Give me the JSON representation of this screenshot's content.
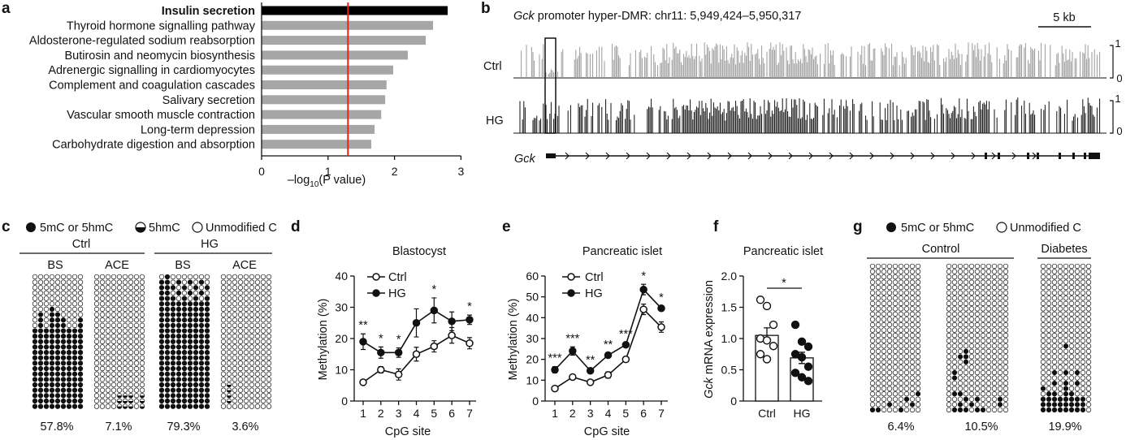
{
  "panel_labels": {
    "a": "a",
    "b": "b",
    "c": "c",
    "d": "d",
    "e": "e",
    "f": "f",
    "g": "g"
  },
  "chart_data": [
    {
      "id": "a",
      "type": "bar",
      "orientation": "horizontal",
      "categories": [
        "Insulin secretion",
        "Thyroid hormone signalling pathway",
        "Aldosterone-regulated sodium reabsorption",
        "Butirosin and neomycin biosynthesis",
        "Adrenergic signalling in cardiomyocytes",
        "Complement and coagulation cascades",
        "Salivary secretion",
        "Vascular smooth muscle contraction",
        "Long-term depression",
        "Carbohydrate digestion and absorption"
      ],
      "values": [
        2.8,
        2.58,
        2.47,
        2.2,
        1.98,
        1.88,
        1.86,
        1.8,
        1.7,
        1.65
      ],
      "highlight_index": 0,
      "xlabel_prefix": "–log",
      "xlabel_sub": "10",
      "xlabel_suffix": "(P value)",
      "xlim": [
        0,
        3
      ],
      "xticks": [
        "0",
        "1",
        "2",
        "3"
      ],
      "threshold": 1.3,
      "colors": {
        "bar": "#a6a6a6",
        "highlight": "#000000",
        "threshold": "#e3241b"
      }
    },
    {
      "id": "b",
      "type": "bar",
      "title_gene": "Gck",
      "title_rest": " promoter hyper-DMR: chr11: 5,949,424–5,950,317",
      "scale_label": "5 kb",
      "tracks": [
        {
          "name": "Ctrl",
          "color": "#9a9a9a",
          "ymax": "1",
          "ymin": "0"
        },
        {
          "name": "HG",
          "color": "#111111",
          "ymax": "1",
          "ymin": "0"
        }
      ],
      "gene_name": "Gck"
    },
    {
      "id": "c",
      "type": "table",
      "legend": [
        "5mC or 5hmC",
        "5hmC",
        "Unmodified C"
      ],
      "groups": [
        "Ctrl",
        "HG"
      ],
      "columns": [
        {
          "label": "BS",
          "percent": "57.8%"
        },
        {
          "label": "ACE",
          "percent": "7.1%"
        },
        {
          "label": "BS",
          "percent": "79.3%"
        },
        {
          "label": "ACE",
          "percent": "3.6%"
        }
      ]
    },
    {
      "id": "d",
      "type": "line",
      "title": "Blastocyst",
      "x": [
        1,
        2,
        3,
        4,
        5,
        6,
        7
      ],
      "xlabel": "CpG site",
      "ylabel": "Methylation (%)",
      "ylim": [
        0,
        40
      ],
      "yticks": [
        "0",
        "10",
        "20",
        "30",
        "40"
      ],
      "series": [
        {
          "name": "Ctrl",
          "values": [
            6,
            10,
            8.5,
            15,
            17.5,
            21,
            18.5
          ],
          "err": [
            0.8,
            1,
            1.8,
            2.2,
            1.8,
            2.5,
            1.8
          ],
          "filled": false
        },
        {
          "name": "HG",
          "values": [
            19,
            15.5,
            15.5,
            25,
            29,
            25.5,
            26
          ],
          "err": [
            2.5,
            1.8,
            1.5,
            4.5,
            4,
            3,
            1.5
          ],
          "filled": true
        }
      ],
      "stars": [
        "**",
        "*",
        "*",
        "",
        "*",
        "",
        "*"
      ]
    },
    {
      "id": "e",
      "type": "line",
      "title": "Pancreatic islet",
      "x": [
        1,
        2,
        3,
        4,
        5,
        6,
        7
      ],
      "xlabel": "CpG site",
      "ylabel": "Methylation (%)",
      "ylim": [
        0,
        60
      ],
      "yticks": [
        "0",
        "10",
        "20",
        "30",
        "40",
        "50",
        "60"
      ],
      "series": [
        {
          "name": "Ctrl",
          "values": [
            6,
            11.5,
            9,
            12.5,
            20,
            44,
            35.5
          ],
          "err": [
            0.5,
            0.8,
            0.8,
            1.5,
            1,
            2.5,
            2.5
          ],
          "filled": false
        },
        {
          "name": "HG",
          "values": [
            15,
            24,
            14.5,
            22,
            27,
            53.5,
            44.5
          ],
          "err": [
            1.5,
            2,
            1,
            1,
            1,
            2.5,
            1
          ],
          "filled": true
        }
      ],
      "stars": [
        "***",
        "***",
        "**",
        "**",
        "***",
        "*",
        "*"
      ]
    },
    {
      "id": "f",
      "type": "bar",
      "title": "Pancreatic islet",
      "ylabel_gene": "Gck",
      "ylabel_rest": " mRNA expression",
      "categories": [
        "Ctrl",
        "HG"
      ],
      "values": [
        1.05,
        0.69
      ],
      "err": [
        0.12,
        0.09
      ],
      "ylim": [
        0,
        2.0
      ],
      "yticks": [
        "0",
        "0.5",
        "1.0",
        "1.5",
        "2.0"
      ],
      "points": [
        [
          1.62,
          1.52,
          1.22,
          1.0,
          0.97,
          0.88,
          0.75,
          0.67
        ],
        [
          1.22,
          0.95,
          0.87,
          0.75,
          0.7,
          0.55,
          0.45,
          0.38,
          0.32
        ]
      ],
      "significance": "*"
    },
    {
      "id": "g",
      "type": "table",
      "legend": [
        "5mC or 5hmC",
        "Unmodified C"
      ],
      "groups": [
        "Control",
        "Diabetes"
      ],
      "percents": [
        "6.4%",
        "10.5%",
        "19.9%"
      ]
    }
  ]
}
